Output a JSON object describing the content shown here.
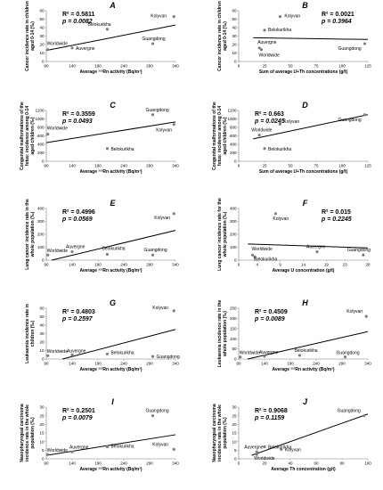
{
  "chart_data": [
    {
      "panel": "A",
      "type": "scatter",
      "ylabel_lines": [
        "Cancer incidence rate in children",
        "aged 0-14 (‰)"
      ],
      "xlabel": "Average ²²²Rn activity (Bq/m³)",
      "r2": "R² = 0.5811",
      "p": "p = 0.0082",
      "xlim": [
        90,
        340
      ],
      "ylim": [
        0,
        60
      ],
      "xticks": [
        90,
        140,
        190,
        240,
        290,
        340
      ],
      "yticks": [
        0,
        10,
        20,
        30,
        40,
        50,
        60
      ],
      "points": [
        {
          "name": "Worldwide",
          "x": 93,
          "y": 14
        },
        {
          "name": "Auvergne",
          "x": 140,
          "y": 16
        },
        {
          "name": "Belokurikha",
          "x": 208,
          "y": 38
        },
        {
          "name": "Guangdong",
          "x": 296,
          "y": 21
        },
        {
          "name": "Kolyvan",
          "x": 337,
          "y": 53
        }
      ],
      "trend": [
        [
          90,
          13
        ],
        [
          340,
          43
        ]
      ]
    },
    {
      "panel": "B",
      "type": "scatter",
      "ylabel_lines": [
        "Cancer incidence rate in children",
        "aged 0-14 (‰)"
      ],
      "xlabel": "Sum of average U+Th concentrations (g/t)",
      "r2": "R² = 0.0021",
      "p": "p = 0.3964",
      "xlim": [
        0,
        125
      ],
      "ylim": [
        0,
        60
      ],
      "xticks": [
        0,
        25,
        50,
        75,
        100,
        125
      ],
      "yticks": [
        0,
        10,
        20,
        30,
        40,
        50,
        60
      ],
      "points": [
        {
          "name": "Auvergne",
          "x": 20,
          "y": 16
        },
        {
          "name": "Worldwide",
          "x": 22,
          "y": 14
        },
        {
          "name": "Belokurikha",
          "x": 25,
          "y": 37
        },
        {
          "name": "Kolyvan",
          "x": 40,
          "y": 53
        },
        {
          "name": "Guangdong",
          "x": 122,
          "y": 21
        }
      ],
      "trend": [
        [
          14,
          28
        ],
        [
          125,
          26
        ]
      ]
    },
    {
      "panel": "C",
      "type": "scatter",
      "ylabel_lines": [
        "Congenital malformations of the",
        "fetus: incidence among 0-14",
        "aged children (‰)"
      ],
      "xlabel": "Average ²²²Rn activity (Bq/m³)",
      "r2": "R² = 0.3559",
      "p": "p = 0.0493",
      "xlim": [
        90,
        340
      ],
      "ylim": [
        0,
        1200
      ],
      "xticks": [
        90,
        140,
        190,
        240,
        290,
        340
      ],
      "yticks": [
        0,
        200,
        400,
        600,
        800,
        1000,
        1200
      ],
      "points": [
        {
          "name": "Worldwide",
          "x": 93,
          "y": 640
        },
        {
          "name": "Belokurikha",
          "x": 208,
          "y": 300
        },
        {
          "name": "Guangdong",
          "x": 296,
          "y": 1100
        },
        {
          "name": "Kolyvan",
          "x": 337,
          "y": 870
        }
      ],
      "trend": [
        [
          90,
          440
        ],
        [
          340,
          930
        ]
      ]
    },
    {
      "panel": "D",
      "type": "scatter",
      "ylabel_lines": [
        "Congenital malformations of the",
        "fetus: incidence among 0-14",
        "aged children (‰)"
      ],
      "xlabel": "Sum of average U+Th concentrations (g/t)",
      "r2": "R² = 0.663",
      "p": "p = 0.0245",
      "xlim": [
        0,
        125
      ],
      "ylim": [
        0,
        1200
      ],
      "xticks": [
        0,
        25,
        50,
        75,
        100,
        125
      ],
      "yticks": [
        0,
        200,
        400,
        600,
        800,
        1000,
        1200
      ],
      "points": [
        {
          "name": "Worldwide",
          "x": 20,
          "y": 620
        },
        {
          "name": "Belokurikha",
          "x": 25,
          "y": 300
        },
        {
          "name": "Kolyvan",
          "x": 40,
          "y": 880
        },
        {
          "name": "Guangdong",
          "x": 122,
          "y": 1100
        }
      ],
      "trend": [
        [
          14,
          530
        ],
        [
          125,
          1100
        ]
      ]
    },
    {
      "panel": "E",
      "type": "scatter",
      "ylabel_lines": [
        "Lung cancer incidence rate in the",
        "whole population (‰)"
      ],
      "xlabel": "Average ²²²Rn activity (Bq/m³)",
      "r2": "R² = 0.4996",
      "p": "p = 0.0569",
      "xlim": [
        90,
        340
      ],
      "ylim": [
        0,
        400
      ],
      "xticks": [
        90,
        140,
        190,
        240,
        290,
        340
      ],
      "yticks": [
        0,
        100,
        200,
        300,
        400
      ],
      "points": [
        {
          "name": "Worldwide",
          "x": 93,
          "y": 40
        },
        {
          "name": "Auvergne",
          "x": 140,
          "y": 65
        },
        {
          "name": "Belokurikha",
          "x": 208,
          "y": 45
        },
        {
          "name": "Guangdong",
          "x": 296,
          "y": 40
        },
        {
          "name": "Kolyvan",
          "x": 337,
          "y": 360
        }
      ],
      "trend": [
        [
          90,
          -10
        ],
        [
          340,
          230
        ]
      ]
    },
    {
      "panel": "F",
      "type": "scatter",
      "ylabel_lines": [
        "Lung cancer incidence rate for the",
        "whole population (‰)"
      ],
      "xlabel": "Average U concentration (g/t)",
      "r2": "R² = 0.015",
      "p": "p = 0.2245",
      "xlim": [
        0,
        28
      ],
      "ylim": [
        0,
        400
      ],
      "xticks": [
        0,
        4,
        9,
        14,
        19,
        23,
        28
      ],
      "yticks": [
        0,
        100,
        200,
        300,
        400
      ],
      "points": [
        {
          "name": "Worldwide",
          "x": 3,
          "y": 40
        },
        {
          "name": "Belokurikha",
          "x": 3.5,
          "y": 25
        },
        {
          "name": "Kolyvan",
          "x": 8,
          "y": 360
        },
        {
          "name": "Auvergne",
          "x": 17,
          "y": 65
        },
        {
          "name": "Guangdong",
          "x": 27,
          "y": 40
        }
      ],
      "trend": [
        [
          2,
          125
        ],
        [
          28,
          95
        ]
      ]
    },
    {
      "panel": "G",
      "type": "scatter",
      "ylabel_lines": [
        "Leukaemia incidence rate in",
        "children (‰)"
      ],
      "xlabel": "Average ²²²Rn activity (Bq/m³)",
      "r2": "R² = 0.4803",
      "p": "p = 0.2597",
      "xlim": [
        90,
        340
      ],
      "ylim": [
        0,
        60
      ],
      "xticks": [
        90,
        140,
        190,
        240,
        290,
        340
      ],
      "yticks": [
        0,
        10,
        20,
        30,
        40,
        50,
        60
      ],
      "points": [
        {
          "name": "Worldwide",
          "x": 93,
          "y": 4
        },
        {
          "name": "Auvergne",
          "x": 140,
          "y": 5
        },
        {
          "name": "Belokurikha",
          "x": 208,
          "y": 6
        },
        {
          "name": "Guangdong",
          "x": 296,
          "y": 3
        },
        {
          "name": "Kolyvan",
          "x": 337,
          "y": 57
        }
      ],
      "trend": [
        [
          90,
          -5
        ],
        [
          340,
          35
        ]
      ]
    },
    {
      "panel": "H",
      "type": "scatter",
      "ylabel_lines": [
        "Leukaemia incidence rate in the",
        "whole population (‰)"
      ],
      "xlabel": "Average ²²²Rn activity (Bq/m³)",
      "r2": "R² = 0.4509",
      "p": "p = 0.0089",
      "xlim": [
        90,
        340
      ],
      "ylim": [
        0,
        250
      ],
      "xticks": [
        90,
        140,
        190,
        240,
        290,
        340
      ],
      "yticks": [
        0,
        50,
        100,
        150,
        200,
        250
      ],
      "points": [
        {
          "name": "Worldwide",
          "x": 93,
          "y": 10
        },
        {
          "name": "Auvergne",
          "x": 140,
          "y": 14
        },
        {
          "name": "Belokurikha",
          "x": 208,
          "y": 18
        },
        {
          "name": "Guangdong",
          "x": 296,
          "y": 10
        },
        {
          "name": "Kolyvan",
          "x": 337,
          "y": 210
        }
      ],
      "trend": [
        [
          90,
          -10
        ],
        [
          340,
          135
        ]
      ]
    },
    {
      "panel": "I",
      "type": "scatter",
      "ylabel_lines": [
        "Nasopharyngeal carcinoma",
        "incidence rate in the whole",
        "population (‰)"
      ],
      "xlabel": "Average ²²²Rn activity (Bq/m³)",
      "r2": "R² = 0.2501",
      "p": "p = 0.0079",
      "xlim": [
        90,
        340
      ],
      "ylim": [
        0,
        30
      ],
      "xticks": [
        90,
        140,
        190,
        240,
        290,
        340
      ],
      "yticks": [
        0,
        5,
        10,
        15,
        20,
        25,
        30
      ],
      "points": [
        {
          "name": "Worldwide",
          "x": 93,
          "y": 2.5
        },
        {
          "name": "Auvergne",
          "x": 140,
          "y": 4
        },
        {
          "name": "Belokurikha",
          "x": 208,
          "y": 7
        },
        {
          "name": "Guangdong",
          "x": 296,
          "y": 25
        },
        {
          "name": "Kolyvan",
          "x": 337,
          "y": 5.5
        }
      ],
      "trend": [
        [
          90,
          2
        ],
        [
          340,
          14
        ]
      ]
    },
    {
      "panel": "J",
      "type": "scatter",
      "ylabel_lines": [
        "Nasopharyngeal carcinoma",
        "incidence rate in the whole",
        "population (‰)"
      ],
      "xlabel": "Average Th concentration (g/t)",
      "r2": "R² = 0.9068",
      "p": "p = 0.1159",
      "xlim": [
        0,
        100
      ],
      "ylim": [
        0,
        30
      ],
      "xticks": [
        0,
        20,
        40,
        60,
        80,
        100
      ],
      "yticks": [
        0,
        5,
        10,
        15,
        20,
        25,
        30
      ],
      "points": [
        {
          "name": "Auvergne",
          "x": 14,
          "y": 4
        },
        {
          "name": "Worldwide",
          "x": 14,
          "y": 2.5
        },
        {
          "name": "Belokurikha",
          "x": 20,
          "y": 7
        },
        {
          "name": "Kolyvan",
          "x": 33,
          "y": 5.5
        },
        {
          "name": "Guangdong",
          "x": 97,
          "y": 25
        }
      ],
      "trend": [
        [
          10,
          2
        ],
        [
          100,
          26
        ]
      ]
    }
  ]
}
